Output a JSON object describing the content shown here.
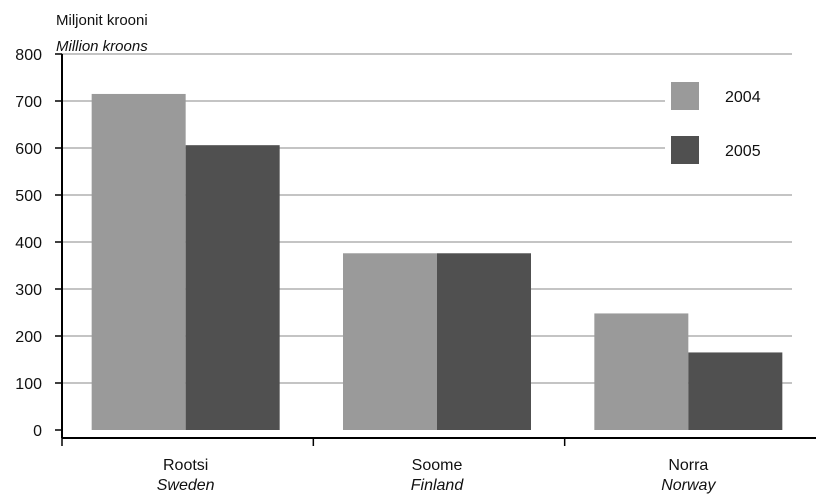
{
  "chart_data": {
    "type": "bar",
    "ylabel": "Miljonit krooni",
    "ylabel_en": "Million kroons",
    "categories": [
      "Rootsi",
      "Soome",
      "Norra"
    ],
    "categories_en": [
      "Sweden",
      "Finland",
      "Norway"
    ],
    "series": [
      {
        "name": "2004",
        "color": "#9a9a9a",
        "values": [
          715,
          376,
          248
        ]
      },
      {
        "name": "2005",
        "color": "#505050",
        "values": [
          606,
          376,
          165
        ]
      }
    ],
    "ylim": [
      0,
      800
    ],
    "yticks": [
      "0",
      "100",
      "200",
      "300",
      "400",
      "500",
      "600",
      "700",
      "800"
    ],
    "grid": true,
    "legend_position": "top-right"
  }
}
